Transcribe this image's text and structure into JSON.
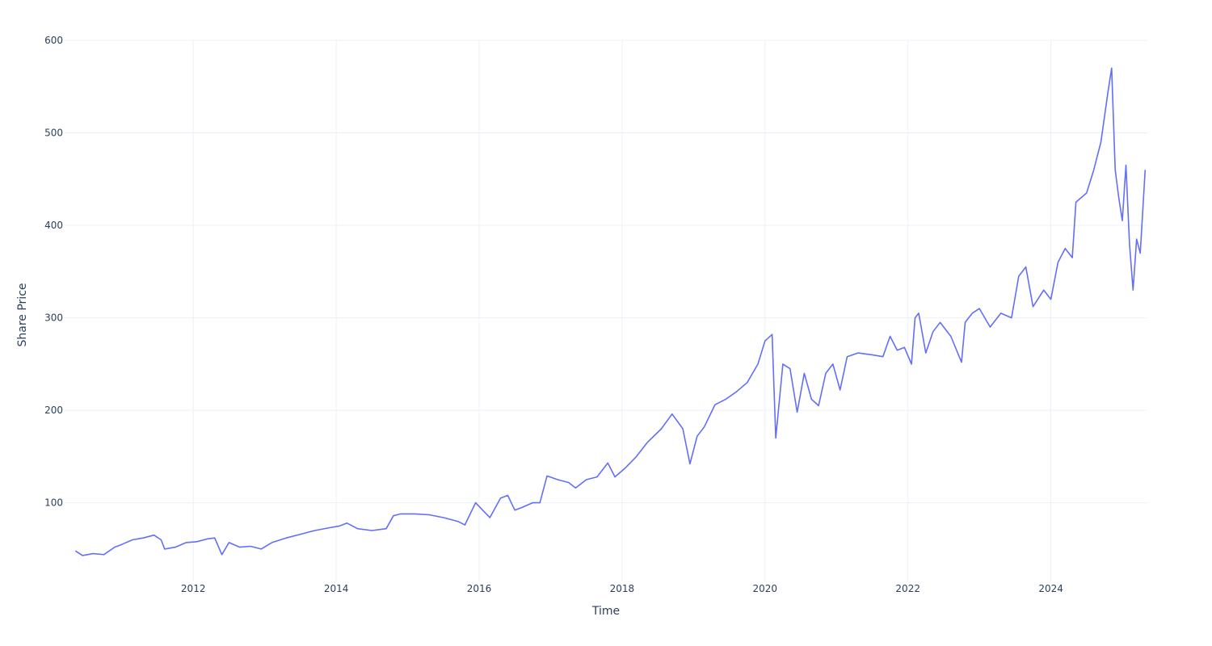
{
  "chart_data": {
    "type": "line",
    "title": "",
    "xlabel": "Time",
    "ylabel": "Share Price",
    "xlim": [
      2010.2,
      2025.35
    ],
    "ylim": [
      15,
      600
    ],
    "x_ticks": [
      2012,
      2014,
      2016,
      2018,
      2020,
      2022,
      2024
    ],
    "x_tick_labels": [
      "2012",
      "2014",
      "2016",
      "2018",
      "2020",
      "2022",
      "2024"
    ],
    "y_ticks": [
      100,
      200,
      300,
      400,
      500,
      600
    ],
    "y_tick_labels": [
      "100",
      "200",
      "300",
      "400",
      "500",
      "600"
    ],
    "grid": true,
    "legend": "none",
    "series": [
      {
        "name": "",
        "color": "#636efa",
        "x": [
          2010.35,
          2010.45,
          2010.6,
          2010.75,
          2010.9,
          2011.0,
          2011.15,
          2011.3,
          2011.45,
          2011.55,
          2011.6,
          2011.75,
          2011.9,
          2012.05,
          2012.2,
          2012.3,
          2012.4,
          2012.5,
          2012.65,
          2012.8,
          2012.95,
          2013.1,
          2013.3,
          2013.5,
          2013.7,
          2013.9,
          2014.05,
          2014.15,
          2014.3,
          2014.5,
          2014.7,
          2014.8,
          2014.9,
          2015.1,
          2015.3,
          2015.5,
          2015.7,
          2015.8,
          2015.95,
          2016.05,
          2016.15,
          2016.3,
          2016.4,
          2016.5,
          2016.6,
          2016.75,
          2016.85,
          2016.95,
          2017.1,
          2017.25,
          2017.35,
          2017.5,
          2017.65,
          2017.8,
          2017.9,
          2018.05,
          2018.2,
          2018.35,
          2018.55,
          2018.7,
          2018.85,
          2018.95,
          2019.05,
          2019.15,
          2019.3,
          2019.45,
          2019.6,
          2019.75,
          2019.9,
          2020.0,
          2020.1,
          2020.15,
          2020.2,
          2020.25,
          2020.35,
          2020.45,
          2020.55,
          2020.65,
          2020.75,
          2020.85,
          2020.95,
          2021.05,
          2021.15,
          2021.3,
          2021.5,
          2021.65,
          2021.75,
          2021.85,
          2021.95,
          2022.05,
          2022.1,
          2022.15,
          2022.25,
          2022.35,
          2022.45,
          2022.6,
          2022.75,
          2022.8,
          2022.9,
          2023.0,
          2023.15,
          2023.3,
          2023.45,
          2023.55,
          2023.65,
          2023.75,
          2023.9,
          2024.0,
          2024.1,
          2024.2,
          2024.3,
          2024.35,
          2024.5,
          2024.6,
          2024.7,
          2024.8,
          2024.85,
          2024.9,
          2024.95,
          2025.0,
          2025.05,
          2025.1,
          2025.15,
          2025.2,
          2025.25,
          2025.32
        ],
        "y": [
          48,
          43,
          45,
          44,
          52,
          55,
          60,
          62,
          65,
          60,
          50,
          52,
          57,
          58,
          61,
          62,
          44,
          57,
          52,
          53,
          50,
          57,
          62,
          66,
          70,
          73,
          75,
          78,
          72,
          70,
          72,
          86,
          88,
          88,
          87,
          84,
          80,
          76,
          100,
          92,
          84,
          105,
          108,
          92,
          95,
          100,
          100,
          129,
          125,
          122,
          116,
          125,
          128,
          143,
          128,
          138,
          150,
          165,
          180,
          196,
          180,
          142,
          172,
          182,
          206,
          212,
          220,
          230,
          250,
          275,
          282,
          170,
          210,
          250,
          245,
          198,
          240,
          212,
          205,
          240,
          250,
          222,
          258,
          262,
          260,
          258,
          280,
          265,
          268,
          250,
          300,
          305,
          262,
          285,
          295,
          280,
          252,
          295,
          305,
          310,
          290,
          305,
          300,
          345,
          355,
          312,
          330,
          320,
          360,
          375,
          365,
          425,
          435,
          460,
          490,
          545,
          570,
          460,
          430,
          405,
          465,
          380,
          330,
          385,
          370,
          460
        ]
      }
    ]
  }
}
